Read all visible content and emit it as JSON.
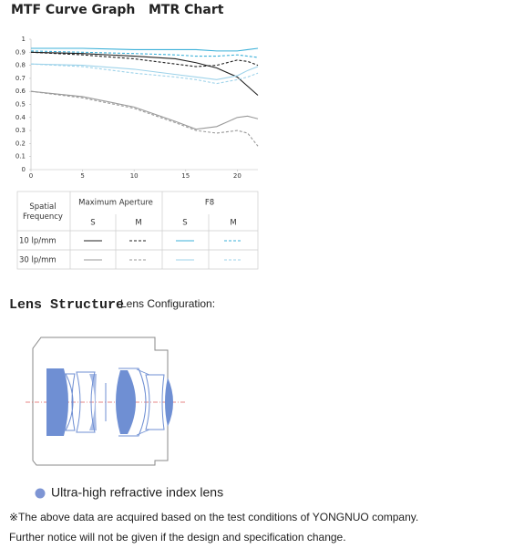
{
  "header": {
    "title": "MTF Curve Graph",
    "subtitle": "MTR Chart"
  },
  "chart_data": {
    "type": "line",
    "x": [
      0,
      5,
      10,
      14,
      16,
      18,
      20,
      21,
      22
    ],
    "xlim": [
      0,
      22
    ],
    "xticks": [
      0,
      5,
      10,
      15,
      20
    ],
    "ylim": [
      0,
      1
    ],
    "yticks": [
      0,
      0.1,
      0.2,
      0.3,
      0.4,
      0.5,
      0.6,
      0.7,
      0.8,
      0.9,
      1
    ],
    "grid": false,
    "series": [
      {
        "color": "#222222",
        "dashed": false,
        "values": [
          0.9,
          0.89,
          0.87,
          0.85,
          0.82,
          0.78,
          0.71,
          0.64,
          0.57
        ]
      },
      {
        "color": "#222222",
        "dashed": true,
        "values": [
          0.9,
          0.88,
          0.85,
          0.81,
          0.79,
          0.8,
          0.84,
          0.83,
          0.8
        ]
      },
      {
        "color": "#3bb0d8",
        "dashed": false,
        "values": [
          0.93,
          0.93,
          0.92,
          0.92,
          0.92,
          0.91,
          0.91,
          0.92,
          0.93
        ]
      },
      {
        "color": "#3bb0d8",
        "dashed": true,
        "values": [
          0.91,
          0.9,
          0.89,
          0.88,
          0.87,
          0.87,
          0.88,
          0.87,
          0.86
        ]
      },
      {
        "color": "#999999",
        "dashed": false,
        "values": [
          0.6,
          0.56,
          0.48,
          0.37,
          0.31,
          0.33,
          0.4,
          0.41,
          0.39
        ]
      },
      {
        "color": "#999999",
        "dashed": true,
        "values": [
          0.6,
          0.55,
          0.47,
          0.36,
          0.3,
          0.28,
          0.3,
          0.28,
          0.18
        ]
      },
      {
        "color": "#9fd3ea",
        "dashed": false,
        "values": [
          0.81,
          0.8,
          0.77,
          0.73,
          0.71,
          0.69,
          0.72,
          0.76,
          0.79
        ]
      },
      {
        "color": "#9fd3ea",
        "dashed": true,
        "values": [
          0.81,
          0.79,
          0.74,
          0.71,
          0.69,
          0.66,
          0.69,
          0.71,
          0.74
        ]
      }
    ]
  },
  "legend_table": {
    "spatial_frequency": "Spatial Frequency",
    "groups": [
      "Maximum Aperture",
      "F8"
    ],
    "columns": [
      "S",
      "M",
      "S",
      "M"
    ],
    "rows": [
      "10 lp/mm",
      "30 lp/mm"
    ]
  },
  "lens_section": {
    "title": "Lens Structure",
    "subtitle": "Lens Configuration:",
    "legend": "Ultra-high refractive index lens"
  },
  "notes": [
    "※The above data are acquired based on the test conditions of YONGNUO company.",
    "Further notice will not be given if the design and specification change."
  ]
}
